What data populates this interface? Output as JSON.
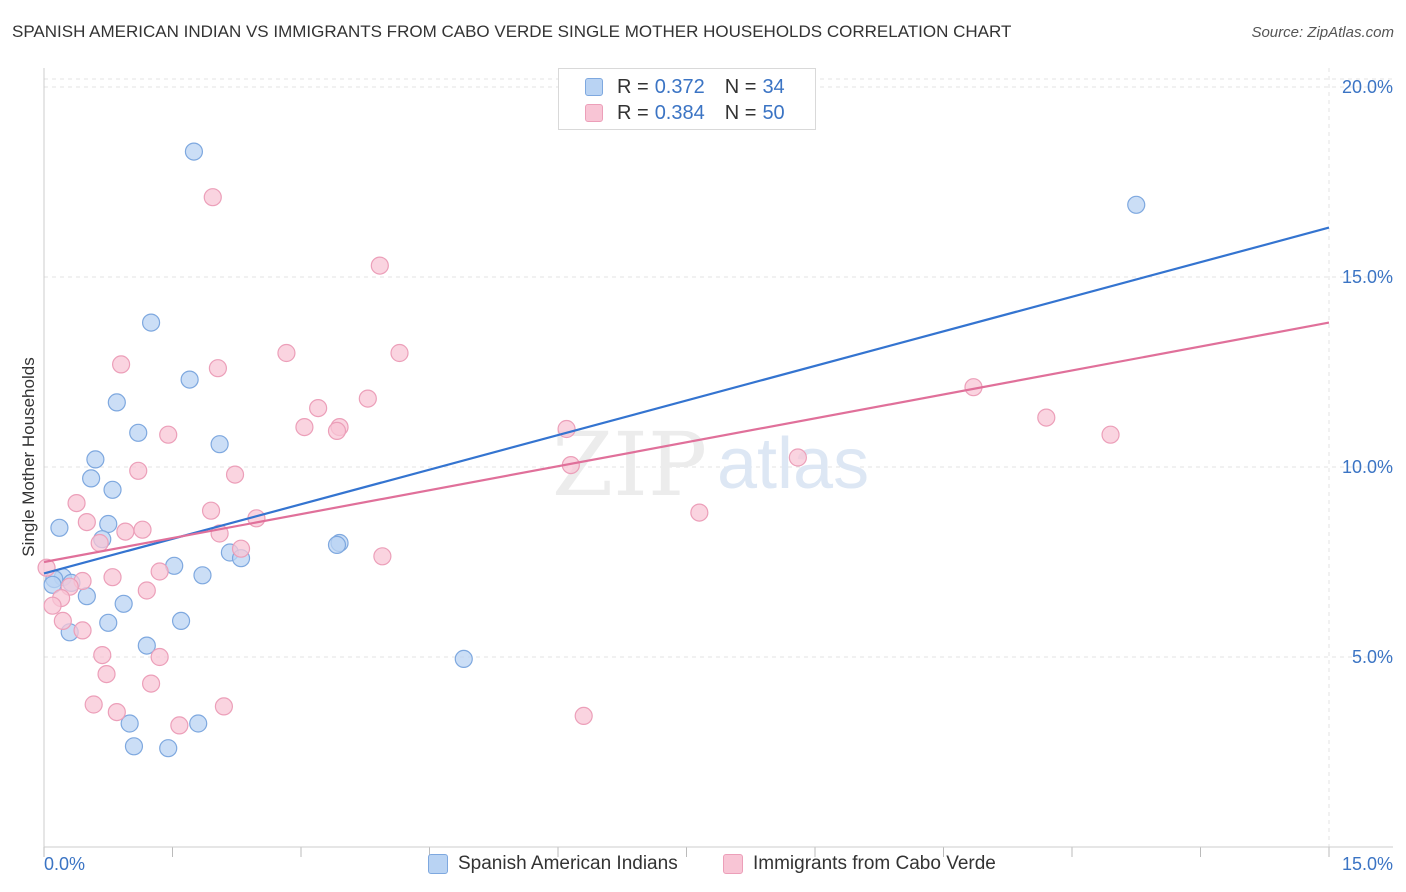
{
  "title": "SPANISH AMERICAN INDIAN VS IMMIGRANTS FROM CABO VERDE SINGLE MOTHER HOUSEHOLDS CORRELATION CHART",
  "source": "Source: ZipAtlas.com",
  "watermark": {
    "zip": "ZIP",
    "atlas": "atlas"
  },
  "legend": {
    "r_label": "R =",
    "n_label": "N =",
    "blue": {
      "r": "0.372",
      "n": "34"
    },
    "pink": {
      "r": "0.384",
      "n": "50"
    }
  },
  "bottom_legend": {
    "blue_label": "Spanish American Indians",
    "pink_label": "Immigrants from Cabo Verde"
  },
  "colors": {
    "blue": "#3474d0",
    "blue_fill": "#b9d3f3",
    "blue_stroke": "#7ea8df",
    "pink": "#e0709a",
    "pink_fill": "#f8c5d5",
    "pink_stroke": "#ec9fb9",
    "tick_text": "#3b74c4",
    "grid": "#e3e3e3"
  },
  "chart_data": {
    "type": "scatter",
    "title": "SPANISH AMERICAN INDIAN VS IMMIGRANTS FROM CABO VERDE SINGLE MOTHER HOUSEHOLDS CORRELATION CHART",
    "xlabel": "",
    "ylabel": "Single Mother Households",
    "xlim": [
      0,
      15
    ],
    "ylim": [
      0,
      20.5
    ],
    "x_tick_labels": [
      {
        "value": 0,
        "label": "0.0%"
      },
      {
        "value": 15,
        "label": "15.0%"
      }
    ],
    "y_tick_labels": [
      {
        "value": 5,
        "label": "5.0%"
      },
      {
        "value": 10,
        "label": "10.0%"
      },
      {
        "value": 15,
        "label": "15.0%"
      },
      {
        "value": 20,
        "label": "20.0%"
      }
    ],
    "x_minor_ticks": [
      0,
      1.5,
      3,
      4.5,
      6,
      7.5,
      9,
      10.5,
      12,
      13.5,
      15
    ],
    "grid": true,
    "series": [
      {
        "name": "Spanish American Indians",
        "color": "#3474d0",
        "trend": {
          "x": [
            0,
            15
          ],
          "y": [
            7.2,
            16.3
          ]
        },
        "points": [
          [
            1.75,
            18.3
          ],
          [
            12.75,
            16.9
          ],
          [
            1.25,
            13.8
          ],
          [
            1.7,
            12.3
          ],
          [
            0.85,
            11.7
          ],
          [
            1.1,
            10.9
          ],
          [
            2.05,
            10.6
          ],
          [
            0.6,
            10.2
          ],
          [
            0.55,
            9.7
          ],
          [
            0.8,
            9.4
          ],
          [
            0.75,
            8.5
          ],
          [
            0.18,
            8.4
          ],
          [
            0.68,
            8.1
          ],
          [
            3.45,
            8.0
          ],
          [
            3.42,
            7.95
          ],
          [
            2.17,
            7.75
          ],
          [
            2.3,
            7.6
          ],
          [
            1.52,
            7.4
          ],
          [
            1.85,
            7.15
          ],
          [
            0.22,
            7.1
          ],
          [
            0.12,
            7.05
          ],
          [
            0.32,
            6.95
          ],
          [
            0.5,
            6.6
          ],
          [
            0.93,
            6.4
          ],
          [
            0.75,
            5.9
          ],
          [
            1.6,
            5.95
          ],
          [
            0.3,
            5.65
          ],
          [
            1.2,
            5.3
          ],
          [
            4.9,
            4.95
          ],
          [
            1.0,
            3.25
          ],
          [
            1.8,
            3.25
          ],
          [
            1.05,
            2.65
          ],
          [
            1.45,
            2.6
          ],
          [
            0.1,
            6.9
          ]
        ]
      },
      {
        "name": "Immigrants from Cabo Verde",
        "color": "#e0709a",
        "trend": {
          "x": [
            0,
            15
          ],
          "y": [
            7.5,
            13.8
          ]
        },
        "points": [
          [
            1.97,
            17.1
          ],
          [
            3.92,
            15.3
          ],
          [
            2.83,
            13.0
          ],
          [
            4.15,
            13.0
          ],
          [
            0.9,
            12.7
          ],
          [
            2.03,
            12.6
          ],
          [
            10.85,
            12.1
          ],
          [
            3.78,
            11.8
          ],
          [
            3.2,
            11.55
          ],
          [
            11.7,
            11.3
          ],
          [
            3.04,
            11.05
          ],
          [
            3.45,
            11.05
          ],
          [
            3.42,
            10.95
          ],
          [
            6.1,
            11.0
          ],
          [
            12.45,
            10.85
          ],
          [
            1.45,
            10.85
          ],
          [
            8.8,
            10.25
          ],
          [
            6.15,
            10.05
          ],
          [
            1.1,
            9.9
          ],
          [
            2.23,
            9.8
          ],
          [
            0.38,
            9.05
          ],
          [
            1.95,
            8.85
          ],
          [
            7.65,
            8.8
          ],
          [
            0.5,
            8.55
          ],
          [
            2.48,
            8.65
          ],
          [
            0.95,
            8.3
          ],
          [
            1.15,
            8.35
          ],
          [
            2.05,
            8.25
          ],
          [
            0.65,
            8.0
          ],
          [
            2.3,
            7.85
          ],
          [
            3.95,
            7.65
          ],
          [
            1.35,
            7.25
          ],
          [
            0.03,
            7.35
          ],
          [
            0.8,
            7.1
          ],
          [
            0.45,
            7.0
          ],
          [
            0.3,
            6.85
          ],
          [
            1.2,
            6.75
          ],
          [
            0.2,
            6.55
          ],
          [
            0.1,
            6.35
          ],
          [
            0.22,
            5.95
          ],
          [
            0.45,
            5.7
          ],
          [
            0.68,
            5.05
          ],
          [
            1.35,
            5.0
          ],
          [
            0.73,
            4.55
          ],
          [
            1.25,
            4.3
          ],
          [
            0.58,
            3.75
          ],
          [
            2.1,
            3.7
          ],
          [
            0.85,
            3.55
          ],
          [
            6.3,
            3.45
          ],
          [
            1.58,
            3.2
          ]
        ]
      }
    ]
  }
}
